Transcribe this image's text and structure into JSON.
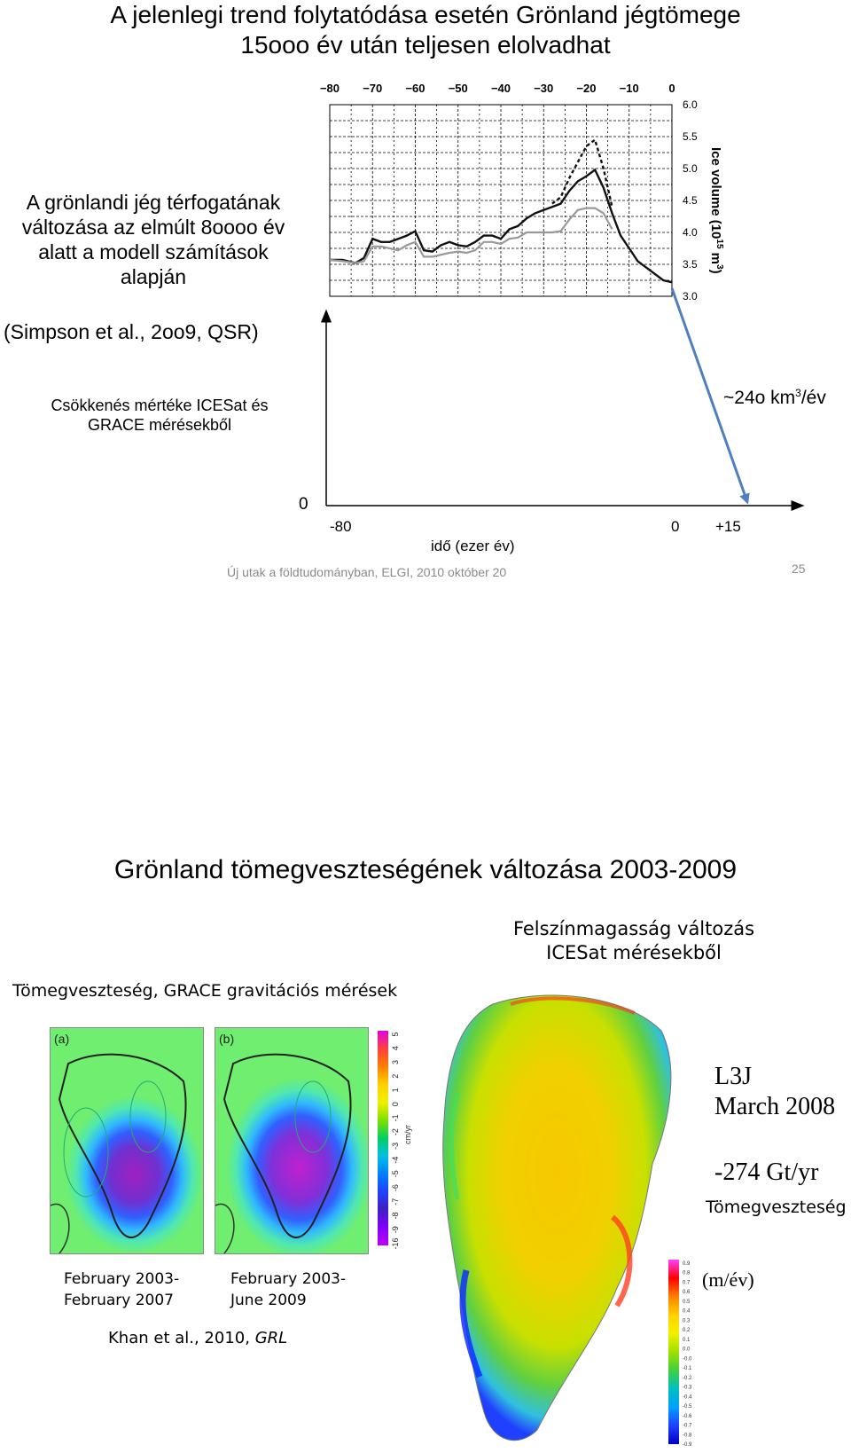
{
  "slide1": {
    "title_line1": "A jelenlegi trend folytatódása esetén Grönland jégtömege",
    "title_line2": "15ooo év után teljesen elolvadhat",
    "desc_line1": "A grönlandi jég térfogatának",
    "desc_line2": "változása az elmúlt 8oooo év",
    "desc_line3": "alatt a modell számítások",
    "desc_line4": "alapján",
    "citation": "(Simpson et al., 2oo9, QSR)",
    "rate_line1": "Csökkenés mértéke ICESat és",
    "rate_line2": "GRACE mérésekből",
    "rate_value_prefix": "~24o km",
    "rate_value_sup": "3",
    "rate_value_suffix": "/év",
    "axis_zero": "0",
    "axis_tick_left": "-80",
    "axis_tick_mid": "0",
    "axis_tick_right": "+15",
    "axis_label": "idő (ezer év)",
    "footer": "Új utak a földtudományban, ELGI, 2010 október 20",
    "page_number": "25"
  },
  "chart_data": {
    "type": "line",
    "x_ticks": [
      "−80",
      "−70",
      "−60",
      "−50",
      "−40",
      "−30",
      "−20",
      "−10",
      "0"
    ],
    "y_ticks": [
      "6.0",
      "5.5",
      "5.0",
      "4.5",
      "4.0",
      "3.5",
      "3.0"
    ],
    "ylabel": "Ice volume (10",
    "ylabel_sup": "15",
    "ylabel_unit": " m",
    "ylabel_unit_sup": "3",
    "ylabel_close": ")",
    "xlim": [
      -80,
      0
    ],
    "ylim": [
      3.0,
      6.0
    ],
    "grid": true,
    "series": [
      {
        "style": "solid-black",
        "color": "#111111",
        "x": [
          -80,
          -77,
          -74,
          -72,
          -70,
          -68,
          -66,
          -64,
          -62,
          -60,
          -58,
          -56,
          -54,
          -52,
          -50,
          -48,
          -46,
          -44,
          -42,
          -40,
          -38,
          -36,
          -34,
          -32,
          -30,
          -28,
          -26,
          -24,
          -22,
          -20,
          -18,
          -16,
          -14,
          -12,
          -10,
          -8,
          -6,
          -4,
          -2,
          0
        ],
        "y": [
          3.57,
          3.57,
          3.52,
          3.6,
          3.9,
          3.85,
          3.85,
          3.9,
          3.95,
          4.02,
          3.72,
          3.7,
          3.8,
          3.85,
          3.8,
          3.78,
          3.85,
          3.95,
          3.95,
          3.9,
          4.05,
          4.1,
          4.22,
          4.3,
          4.35,
          4.4,
          4.45,
          4.65,
          4.8,
          4.88,
          4.98,
          4.7,
          4.3,
          3.95,
          3.75,
          3.55,
          3.45,
          3.35,
          3.25,
          3.22
        ]
      },
      {
        "style": "dashed-black",
        "color": "#111111",
        "x": [
          -28,
          -26,
          -24,
          -22,
          -20,
          -18,
          -16,
          -14
        ],
        "y": [
          4.45,
          4.55,
          4.85,
          5.1,
          5.35,
          5.45,
          5.0,
          4.4
        ]
      },
      {
        "style": "solid-gray",
        "color": "#999999",
        "x": [
          -80,
          -77,
          -74,
          -72,
          -70,
          -68,
          -66,
          -64,
          -62,
          -60,
          -58,
          -56,
          -54,
          -52,
          -50,
          -48,
          -46,
          -44,
          -42,
          -40,
          -38,
          -36,
          -34,
          -32,
          -30,
          -28,
          -26,
          -24,
          -22,
          -20,
          -18,
          -16,
          -14
        ],
        "y": [
          3.57,
          3.55,
          3.52,
          3.55,
          3.78,
          3.78,
          3.75,
          3.72,
          3.8,
          3.85,
          3.62,
          3.62,
          3.65,
          3.68,
          3.7,
          3.68,
          3.72,
          3.85,
          3.85,
          3.82,
          3.9,
          3.92,
          4.0,
          4.0,
          4.0,
          4.0,
          4.02,
          4.2,
          4.35,
          4.38,
          4.38,
          4.3,
          4.05
        ]
      }
    ]
  },
  "slide2": {
    "title": "Grönland tömegveszteségének változása 2003-2009",
    "icesat_line1": "Felszínmagasság változás",
    "icesat_line2": "ICESat mérésekből",
    "grace_label": "Tömegveszteség, GRACE gravitációs mérések",
    "panel_a_label": "(a)",
    "panel_b_label": "(b)",
    "colorbar_ticks": [
      "5",
      "4",
      "3",
      "2",
      "1",
      "0",
      "-1",
      "-2",
      "-3",
      "-4",
      "-5",
      "-6",
      "-7",
      "-8",
      "-9",
      "-16"
    ],
    "colorbar_unit": "cm/yr",
    "caption_a_line1": "February 2003-",
    "caption_a_line2": "February 2007",
    "caption_b_line1": "February 2003-",
    "caption_b_line2": "June 2009",
    "khan_ref": "Khan et al., 2010, ",
    "khan_journal": "GRL",
    "l3j": "L3J",
    "march": "March 2008",
    "rate": "-274 Gt/yr",
    "rate_label": "Tömegveszteség",
    "unit_label": "(m/év)",
    "legend_ticks": [
      "0.9",
      "0.8",
      "0.7",
      "0.6",
      "0.5",
      "0.4",
      "0.3",
      "0.2",
      "0.1",
      "0.0",
      "-0.0",
      "-0.1",
      "-0.2",
      "-0.3",
      "-0.4",
      "-0.5",
      "-0.6",
      "-0.7",
      "-0.8",
      "-0.9"
    ]
  }
}
